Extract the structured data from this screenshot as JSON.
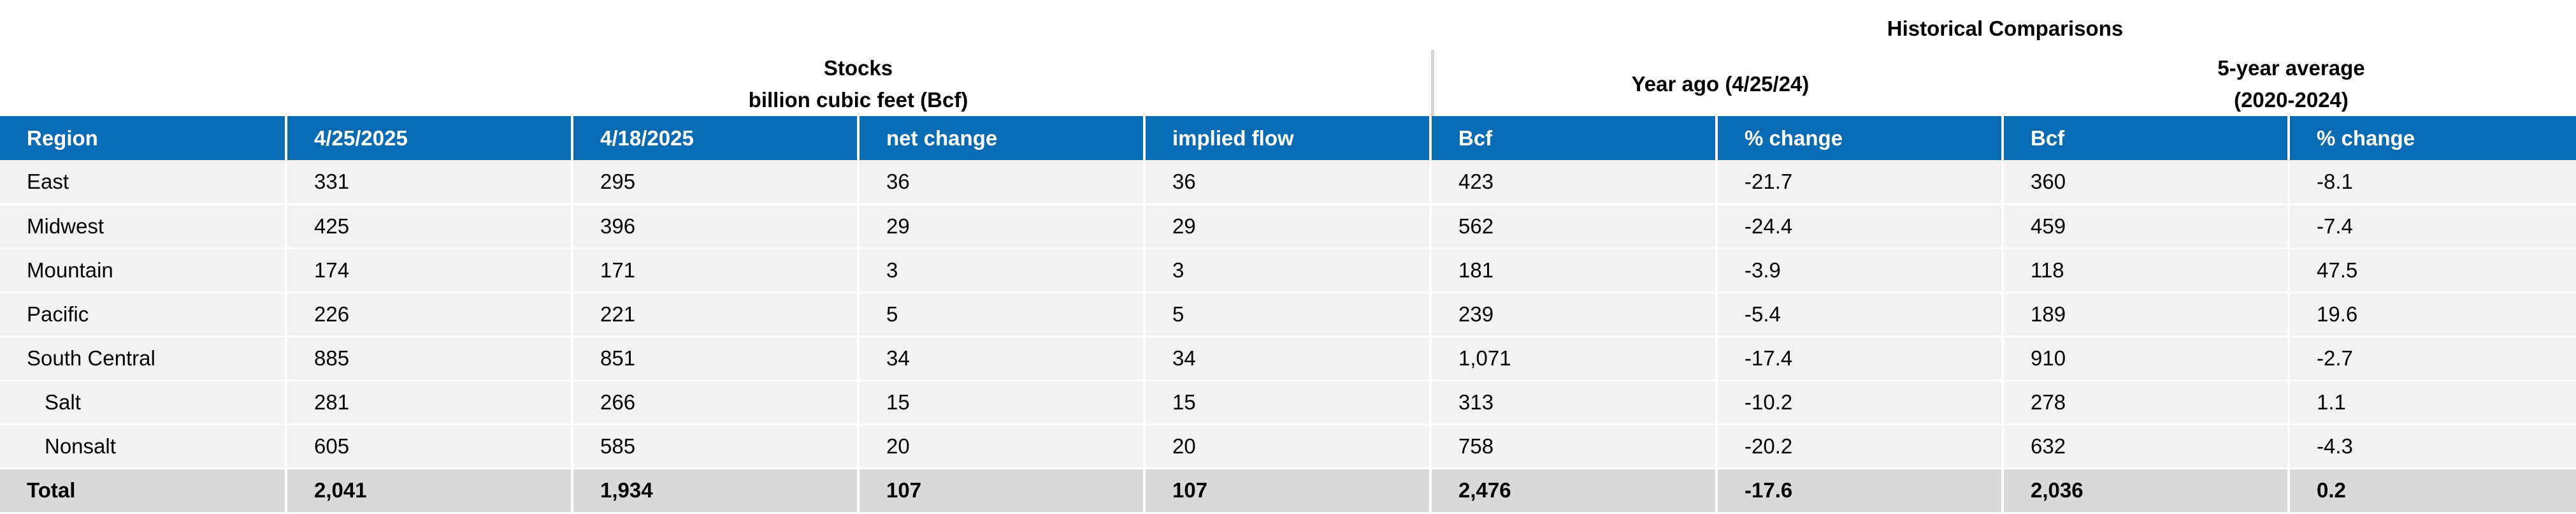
{
  "headers": {
    "historical": "Historical Comparisons",
    "stocks_line1": "Stocks",
    "stocks_line2": "billion cubic feet (Bcf)",
    "year_ago": "Year ago (4/25/24)",
    "five_year_line1": "5-year average",
    "five_year_line2": "(2020-2024)"
  },
  "columns": [
    "Region",
    "4/25/2025",
    "4/18/2025",
    "net change",
    "implied flow",
    "Bcf",
    "% change",
    "Bcf",
    "% change"
  ],
  "rows": [
    {
      "region": "East",
      "current": "331",
      "prior": "295",
      "net_change": "36",
      "implied_flow": "36",
      "year_ago_bcf": "423",
      "year_ago_pct": "-21.7",
      "five_year_bcf": "360",
      "five_year_pct": "-8.1"
    },
    {
      "region": "Midwest",
      "current": "425",
      "prior": "396",
      "net_change": "29",
      "implied_flow": "29",
      "year_ago_bcf": "562",
      "year_ago_pct": "-24.4",
      "five_year_bcf": "459",
      "five_year_pct": "-7.4"
    },
    {
      "region": "Mountain",
      "current": "174",
      "prior": "171",
      "net_change": "3",
      "implied_flow": "3",
      "year_ago_bcf": "181",
      "year_ago_pct": "-3.9",
      "five_year_bcf": "118",
      "five_year_pct": "47.5"
    },
    {
      "region": "Pacific",
      "current": "226",
      "prior": "221",
      "net_change": "5",
      "implied_flow": "5",
      "year_ago_bcf": "239",
      "year_ago_pct": "-5.4",
      "five_year_bcf": "189",
      "five_year_pct": "19.6"
    },
    {
      "region": "South Central",
      "current": "885",
      "prior": "851",
      "net_change": "34",
      "implied_flow": "34",
      "year_ago_bcf": "1,071",
      "year_ago_pct": "-17.4",
      "five_year_bcf": "910",
      "five_year_pct": "-2.7"
    },
    {
      "region": "Salt",
      "current": "281",
      "prior": "266",
      "net_change": "15",
      "implied_flow": "15",
      "year_ago_bcf": "313",
      "year_ago_pct": "-10.2",
      "five_year_bcf": "278",
      "five_year_pct": "1.1"
    },
    {
      "region": "Nonsalt",
      "current": "605",
      "prior": "585",
      "net_change": "20",
      "implied_flow": "20",
      "year_ago_bcf": "758",
      "year_ago_pct": "-20.2",
      "five_year_bcf": "632",
      "five_year_pct": "-4.3"
    },
    {
      "region": "Total",
      "current": "2,041",
      "prior": "1,934",
      "net_change": "107",
      "implied_flow": "107",
      "year_ago_bcf": "2,476",
      "year_ago_pct": "-17.6",
      "five_year_bcf": "2,036",
      "five_year_pct": "0.2"
    }
  ],
  "colors": {
    "header_bg": "#0a6bb5",
    "row_bg": "#f2f2f2",
    "total_bg": "#d9d9d9"
  }
}
